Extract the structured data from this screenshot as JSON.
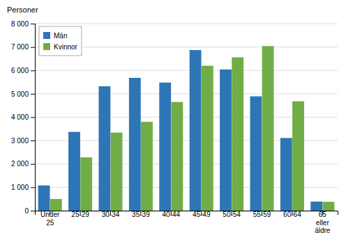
{
  "chart_data": {
    "type": "bar",
    "ylabel": "Personer",
    "categories": [
      "Under\n25",
      "25-29",
      "30-34",
      "35-39",
      "40-44",
      "45-49",
      "50-54",
      "55-59",
      "60-64",
      "65\neller\näldre"
    ],
    "series": [
      {
        "name": "Män",
        "color": "#2E75B6",
        "values": [
          1080,
          3370,
          5320,
          5680,
          5480,
          6870,
          6040,
          4890,
          3110,
          390
        ]
      },
      {
        "name": "Kvinnor",
        "color": "#70AD47",
        "values": [
          500,
          2280,
          3340,
          3800,
          4650,
          6200,
          6560,
          7040,
          4680,
          380
        ]
      }
    ],
    "ylim": [
      0,
      8000
    ],
    "yticks": [
      0,
      {
        "value": 1000,
        "label": "1 000"
      },
      {
        "value": 2000,
        "label": "2 000"
      },
      {
        "value": 3000,
        "label": "3 000"
      },
      {
        "value": 4000,
        "label": "4 000"
      },
      {
        "value": 5000,
        "label": "5 000"
      },
      {
        "value": 6000,
        "label": "6 000"
      },
      {
        "value": 7000,
        "label": "7 000"
      },
      {
        "value": 8000,
        "label": "8 000"
      }
    ],
    "grid": true,
    "legend": "upper left"
  }
}
